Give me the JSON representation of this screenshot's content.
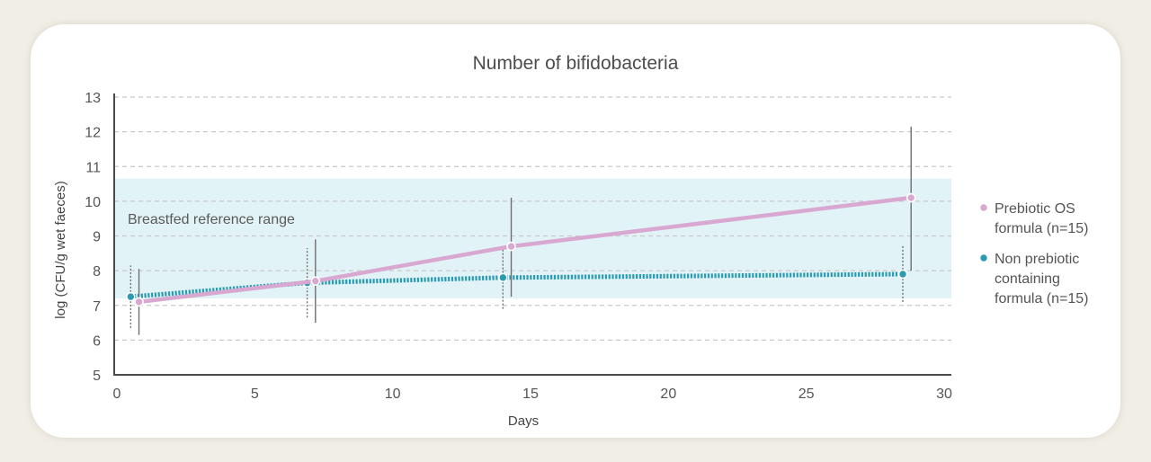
{
  "chart_data": {
    "type": "line",
    "title": "Number of bifidobacteria",
    "xlabel": "Days",
    "ylabel": "log (CFU/g wet faeces)",
    "xlim": [
      0,
      30
    ],
    "ylim": [
      5,
      13
    ],
    "x_ticks": [
      0,
      5,
      10,
      15,
      20,
      25,
      30
    ],
    "y_ticks": [
      5,
      6,
      7,
      8,
      9,
      10,
      11,
      12,
      13
    ],
    "grid": "horizontal dashed",
    "legend_position": "right",
    "reference_band": {
      "label": "Breastfed reference range",
      "y_range": [
        7.2,
        10.65
      ],
      "color": "#e2f3f7"
    },
    "series": [
      {
        "name": "Prebiotic OS formula (n=15)",
        "legend_lines": [
          "Prebiotic OS",
          "formula (n=15)"
        ],
        "color": "#d9a8d1",
        "style": "solid",
        "x": [
          0.8,
          7.2,
          14.3,
          28.8
        ],
        "values": [
          7.1,
          7.7,
          8.7,
          10.1
        ],
        "error_low": [
          6.15,
          6.5,
          7.25,
          8.0
        ],
        "error_high": [
          8.05,
          8.9,
          10.1,
          12.15
        ]
      },
      {
        "name": "Non prebiotic containing formula (n=15)",
        "legend_lines": [
          "Non prebiotic",
          "containing",
          "formula (n=15)"
        ],
        "color": "#2a9bb0",
        "style": "dotted",
        "x": [
          0.5,
          6.9,
          14.0,
          28.5
        ],
        "values": [
          7.25,
          7.65,
          7.8,
          7.9
        ],
        "error_low": [
          6.35,
          6.65,
          6.9,
          7.1
        ],
        "error_high": [
          8.15,
          8.65,
          8.7,
          8.75
        ]
      }
    ]
  }
}
